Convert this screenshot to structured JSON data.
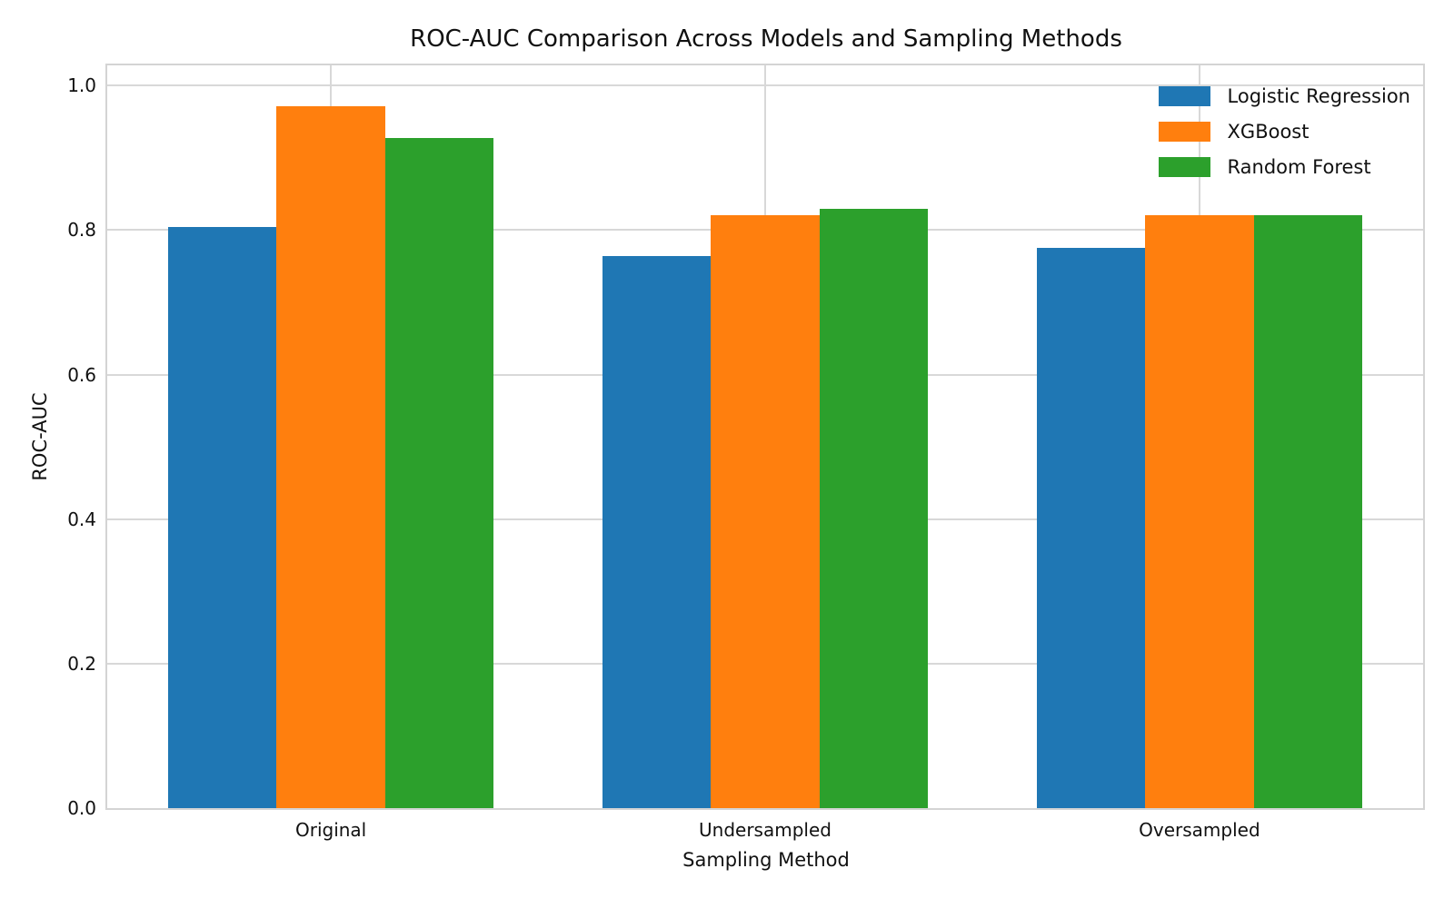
{
  "chart_data": {
    "type": "bar",
    "title": "ROC-AUC Comparison Across Models and Sampling Methods",
    "xlabel": "Sampling Method",
    "ylabel": "ROC-AUC",
    "categories": [
      "Original",
      "Undersampled",
      "Oversampled"
    ],
    "series": [
      {
        "name": "Logistic Regression",
        "color": "#1f77b4",
        "values": [
          0.804,
          0.764,
          0.776
        ]
      },
      {
        "name": "XGBoost",
        "color": "#ff7f0e",
        "values": [
          0.971,
          0.821,
          0.821
        ]
      },
      {
        "name": "Random Forest",
        "color": "#2ca02c",
        "values": [
          0.927,
          0.83,
          0.821
        ]
      }
    ],
    "ylim": [
      0,
      1.028
    ],
    "xlim": [
      -0.515,
      2.515
    ],
    "bar_width": 0.25,
    "yticks": [
      0.0,
      0.2,
      0.4,
      0.6,
      0.8,
      1.0
    ],
    "ytick_labels": [
      "0.0",
      "0.2",
      "0.4",
      "0.6",
      "0.8",
      "1.0"
    ],
    "grid": "both",
    "grid_color": "#d8d8d8",
    "spine_color": "#d4d4d4",
    "text_color": "#111111",
    "background": "#ffffff",
    "legend_position": "upper right"
  }
}
